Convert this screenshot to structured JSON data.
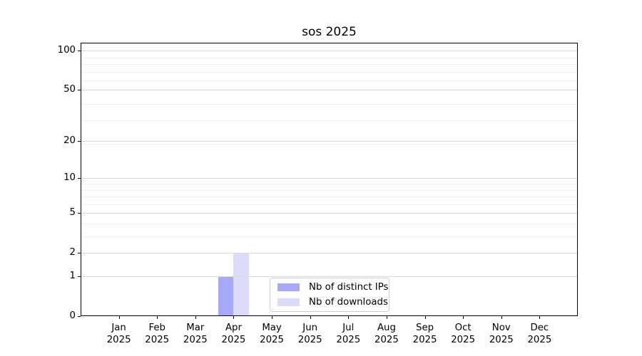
{
  "title": "sos 2025",
  "chart_data": {
    "type": "bar",
    "title": "sos 2025",
    "year": "2025",
    "categories": [
      "Jan",
      "Feb",
      "Mar",
      "Apr",
      "May",
      "Jun",
      "Jul",
      "Aug",
      "Sep",
      "Oct",
      "Nov",
      "Dec"
    ],
    "series": [
      {
        "name": "Nb of distinct IPs",
        "color": "#a8a8f8",
        "values": [
          0,
          0,
          0,
          1,
          0,
          0,
          0,
          0,
          0,
          0,
          0,
          0
        ]
      },
      {
        "name": "Nb of downloads",
        "color": "#dcdcfa",
        "values": [
          0,
          0,
          0,
          2,
          0,
          0,
          0,
          0,
          0,
          0,
          0,
          0
        ]
      }
    ],
    "xlabel": "",
    "ylabel": "",
    "y_major_ticks": [
      0,
      1,
      2,
      5,
      10,
      20,
      50,
      100
    ],
    "y_major_tick_labels": [
      "0",
      "1",
      "2",
      "5",
      "10",
      "20",
      "50",
      "100"
    ],
    "y_minor_ticks": [
      3,
      4,
      6,
      7,
      8,
      9,
      19,
      29,
      39,
      59,
      69,
      79,
      89
    ],
    "scale": "log1p",
    "ylim": [
      0,
      115
    ],
    "grid": true,
    "legend_position": "lower-center",
    "colors": {
      "axis": "#000000",
      "grid_major": "#d9d9d9",
      "grid_minor": "#efefef",
      "background": "#ffffff",
      "legend_border": "#cccccc"
    }
  }
}
